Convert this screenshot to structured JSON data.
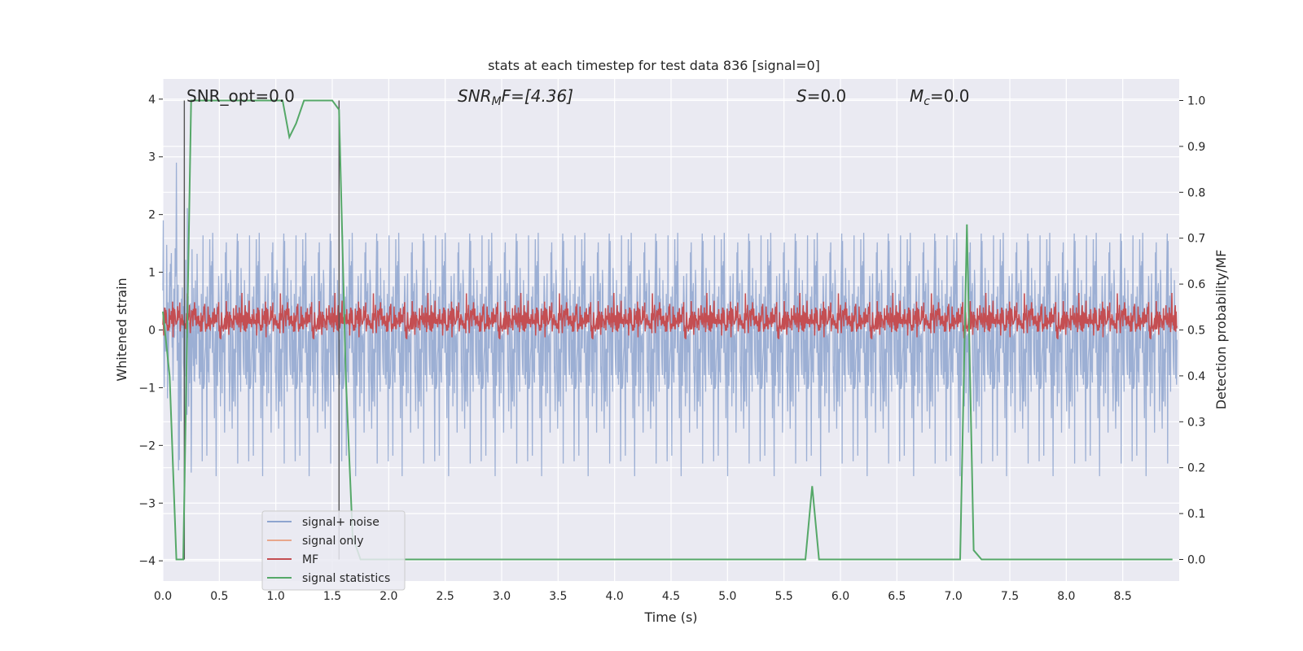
{
  "chart_data": {
    "type": "line",
    "title": "stats at each timestep for test data 836 [signal=0]",
    "xlabel": "Time (s)",
    "ylabel_left": "Whitened strain",
    "ylabel_right": "Detection probability/MF",
    "xlim": [
      0.0,
      9.0
    ],
    "ylim_left": [
      -4.35,
      4.35
    ],
    "ylim_right": [
      -0.047,
      1.047
    ],
    "grid": true,
    "legend_position": "lower-left",
    "x_ticks": [
      "0.0",
      "0.5",
      "1.0",
      "1.5",
      "2.0",
      "2.5",
      "3.0",
      "3.5",
      "4.0",
      "4.5",
      "5.0",
      "5.5",
      "6.0",
      "6.5",
      "7.0",
      "7.5",
      "8.0",
      "8.5"
    ],
    "y_ticks_left": [
      "−4",
      "−3",
      "−2",
      "−1",
      "0",
      "1",
      "2",
      "3",
      "4"
    ],
    "y_ticks_right": [
      "0.0",
      "0.1",
      "0.2",
      "0.3",
      "0.4",
      "0.5",
      "0.6",
      "0.7",
      "0.8",
      "0.9",
      "1.0"
    ],
    "annotations": {
      "snr_opt": "SNR_opt=0.0",
      "snr_mf_base": "SNR",
      "snr_mf_sub": "M",
      "snr_mf_rest": "F=[4.36]",
      "s_base": "S",
      "s_rest": "=0.0",
      "mc_base": "M",
      "mc_sub": "c",
      "mc_rest": "=0.0"
    },
    "vertical_markers_x": [
      0.19,
      1.56
    ],
    "series": [
      {
        "name": "signal+ noise",
        "color": "#8ea5cf",
        "description_stats": {
          "mean": 0.0,
          "std": 1.0,
          "min": -3.65,
          "max": 3.9
        }
      },
      {
        "name": "signal only",
        "color": "#e8a78c",
        "values": "zero"
      },
      {
        "name": "MF",
        "color": "#c44e52",
        "description_stats": {
          "mean": 0.5,
          "min": 0.48,
          "max": 0.63,
          "axis": "right"
        }
      },
      {
        "name": "signal statistics",
        "color": "#55a868",
        "axis": "right",
        "x": [
          0.0,
          0.06,
          0.12,
          0.18,
          0.25,
          0.5,
          1.0,
          1.06,
          1.12,
          1.18,
          1.25,
          1.5,
          1.56,
          1.62,
          1.68,
          1.75,
          1.81,
          2.0,
          5.56,
          5.62,
          5.69,
          5.75,
          5.81,
          6.0,
          7.06,
          7.12,
          7.18,
          7.25,
          7.5,
          8.94
        ],
        "y": [
          0.54,
          0.4,
          0.0,
          0.0,
          1.0,
          1.0,
          1.0,
          1.0,
          0.92,
          0.95,
          1.0,
          1.0,
          0.98,
          0.4,
          0.05,
          0.0,
          0.0,
          0.0,
          0.0,
          0.0,
          0.0,
          0.16,
          0.0,
          0.0,
          0.0,
          0.73,
          0.02,
          0.0,
          0.0,
          0.0
        ]
      }
    ]
  }
}
